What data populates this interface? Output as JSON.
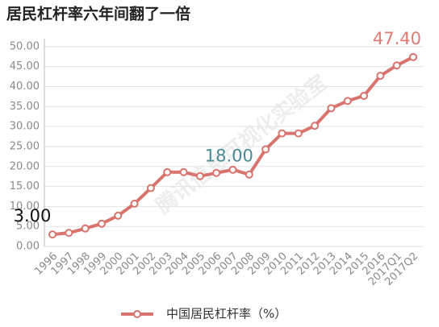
{
  "chart_data": {
    "type": "line",
    "title": "居民杠杆率六年间翻了一倍",
    "watermark": "腾讯信息可视化实验室",
    "categories": [
      "1996",
      "1997",
      "1998",
      "1999",
      "2000",
      "2001",
      "2002",
      "2003",
      "2004",
      "2005",
      "2006",
      "2007",
      "2008",
      "2009",
      "2010",
      "2011",
      "2012",
      "2013",
      "2014",
      "2015",
      "2016",
      "2017Q1",
      "2017Q2"
    ],
    "series": [
      {
        "name": "中国居民杠杆率（%）",
        "color": "#d9736e",
        "values": [
          3,
          3.4,
          4.5,
          5.7,
          7.7,
          10.7,
          14.6,
          18.6,
          18.6,
          17.6,
          18.4,
          19.2,
          18,
          24.3,
          28.3,
          28.3,
          30.2,
          34.6,
          36.4,
          37.7,
          42.7,
          45.3,
          47.4
        ],
        "value_labels": [
          "3.00",
          null,
          null,
          null,
          null,
          null,
          null,
          null,
          null,
          null,
          null,
          null,
          "18.00",
          null,
          null,
          null,
          null,
          null,
          null,
          null,
          null,
          null,
          "47.40"
        ],
        "value_label_colors": [
          "#111111",
          null,
          null,
          null,
          null,
          null,
          null,
          null,
          null,
          null,
          null,
          null,
          "#4a8a96",
          null,
          null,
          null,
          null,
          null,
          null,
          null,
          null,
          null,
          "#e07a72"
        ]
      }
    ],
    "ylim": [
      0,
      52
    ],
    "yticks": [
      {
        "value": 0,
        "label": "0.00"
      },
      {
        "value": 5,
        "label": "5.00"
      },
      {
        "value": 10,
        "label": "10.00"
      },
      {
        "value": 15,
        "label": "15.00"
      },
      {
        "value": 20,
        "label": "20.00"
      },
      {
        "value": 25,
        "label": "25.00"
      },
      {
        "value": 30,
        "label": "30.00"
      },
      {
        "value": 35,
        "label": "35.00"
      },
      {
        "value": 40,
        "label": "40.00"
      },
      {
        "value": 45,
        "label": "45.00"
      },
      {
        "value": 50,
        "label": "50.00"
      }
    ],
    "grid": true,
    "legend": "bottom"
  }
}
